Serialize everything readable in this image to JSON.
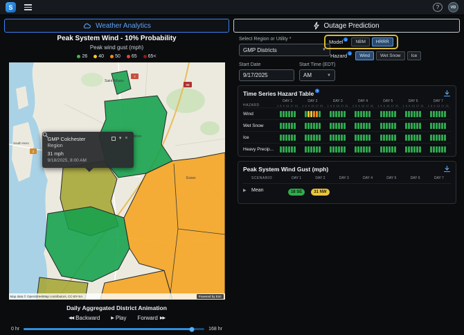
{
  "topbar": {
    "logo_text": "S",
    "help_label": "?",
    "avatar_initials": "VD"
  },
  "panel_headers": {
    "weather": "Weather Analytics",
    "outage": "Outage Prediction"
  },
  "weather": {
    "title": "Peak System Wind - 10% Probability",
    "subtitle": "Peak wind gust (mph)",
    "legend": [
      {
        "label": "26",
        "color": "#43b649"
      },
      {
        "label": "40",
        "color": "#f4c530"
      },
      {
        "label": "50",
        "color": "#f2891f"
      },
      {
        "label": "65",
        "color": "#e0482e"
      },
      {
        "label": "65<",
        "color": "#8e1b12"
      }
    ],
    "map": {
      "towns": [
        "Saint Albans",
        "South Hero",
        "Milton",
        "Essex"
      ],
      "shields": [
        "7",
        "89",
        "2"
      ],
      "attribution": "Map data © OpenStreetMap contributors, CC-BY-SA",
      "powered_by": "Powered by Esri",
      "tooltip": {
        "title": "GMP Colchester",
        "subtitle": "Region",
        "value": "31 mph",
        "timestamp": "9/18/2025, 8:00 AM"
      }
    },
    "animation": {
      "title": "Daily Aggregated District Animation",
      "backward_label": "Backward",
      "play_label": "Play",
      "forward_label": "Forward",
      "slider_start": "0 hr",
      "slider_end": "168 hr",
      "slider_value_pct": 93
    }
  },
  "outage": {
    "region_label": "Select Region or Utility *",
    "region_value": "GMP Districts",
    "model": {
      "label": "Model",
      "options": [
        "NBM",
        "HRRR"
      ],
      "selected": "HRRR"
    },
    "hazard": {
      "label": "Hazard",
      "options": [
        "Wind",
        "Wet Snow",
        "Ice"
      ],
      "selected": "Wind"
    },
    "start_date_label": "Start Date",
    "start_date_value": "9/17/2025",
    "start_time_label": "Start Time (EDT)",
    "start_time_value": "AM",
    "hazard_table": {
      "title": "Time Series Hazard Table",
      "hazard_col": "HAZARD",
      "days": [
        "DAY 1",
        "DAY 2",
        "DAY 3",
        "DAY 4",
        "DAY 5",
        "DAY 6",
        "DAY 7"
      ],
      "hours": [
        "1",
        "5",
        "9",
        "13",
        "17",
        "21"
      ],
      "palette": {
        "G": "#2fa84f",
        "Y": "#f4c530",
        "O": "#f2891f"
      },
      "rows": [
        {
          "name": "Wind",
          "cells": [
            "GGGGGG",
            "GYYOOG",
            "GGGGGG",
            "GGGGGG",
            "GGGGGG",
            "GGGGGG",
            "GGGGGG"
          ]
        },
        {
          "name": "Wet Snow",
          "cells": [
            "GGGGGG",
            "GGGGGG",
            "GGGGGG",
            "GGGGGG",
            "GGGGGG",
            "GGGGGG",
            "GGGGGG"
          ]
        },
        {
          "name": "Ice",
          "cells": [
            "GGGGGG",
            "GGGGGG",
            "GGGGGG",
            "GGGGGG",
            "GGGGGG",
            "GGGGGG",
            "GGGGGG"
          ]
        },
        {
          "name": "Heavy Precip...",
          "cells": [
            "GGGGGG",
            "GGGGGG",
            "GGGGGG",
            "GGGGGG",
            "GGGGGG",
            "GGGGGG",
            "GGGGGG"
          ]
        }
      ]
    },
    "gust_table": {
      "title": "Peak System Wind Gust (mph)",
      "scenario_col": "SCENARIO",
      "days": [
        "DAY 1",
        "DAY 2",
        "DAY 3",
        "DAY 4",
        "DAY 5",
        "DAY 6",
        "DAY 7"
      ],
      "rows": [
        {
          "name": "Mean",
          "badges": [
            {
              "day_index": 0,
              "label": "18 SE",
              "bg": "#2fae4a",
              "fg": "#0a2410"
            },
            {
              "day_index": 1,
              "label": "31 NW",
              "bg": "#eac63b",
              "fg": "#2a2105"
            }
          ]
        }
      ]
    }
  }
}
